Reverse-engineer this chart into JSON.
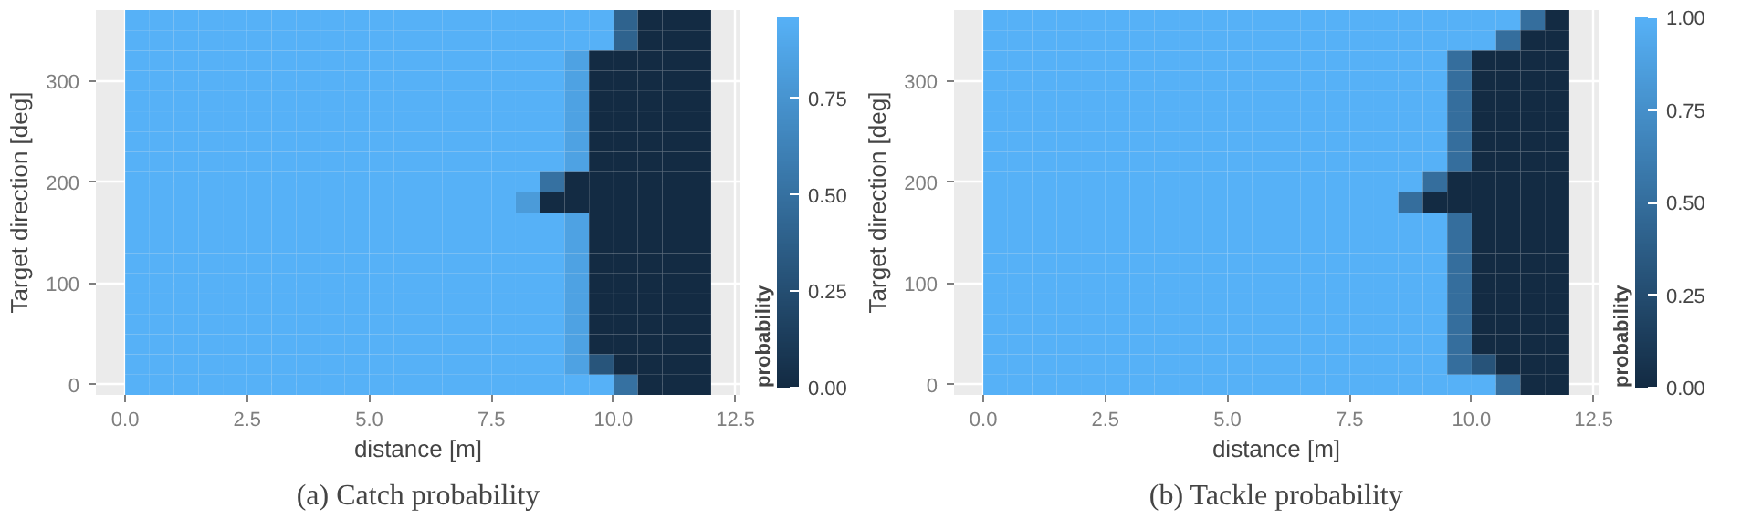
{
  "chart_data": [
    {
      "type": "heatmap",
      "xlabel": "distance [m]",
      "ylabel": "Target direction [deg]",
      "clabel": "probability",
      "annotations": [
        "(a) Catch probability"
      ],
      "x": [
        0.25,
        0.75,
        1.25,
        1.75,
        2.25,
        2.75,
        3.25,
        3.75,
        4.25,
        4.75,
        5.25,
        5.75,
        6.25,
        6.75,
        7.25,
        7.75,
        8.25,
        8.75,
        9.25,
        9.75,
        10.25,
        10.75,
        11.25,
        11.75
      ],
      "y_categories": [
        null,
        null,
        null,
        "300",
        null,
        null,
        null,
        null,
        "200",
        null,
        null,
        null,
        null,
        "100",
        null,
        null,
        null,
        null,
        "0"
      ],
      "cells": [
        [
          0.96,
          0.96,
          0.96,
          0.96,
          0.96,
          0.96,
          0.96,
          0.96,
          0.96,
          0.96,
          0.96,
          0.96,
          0.96,
          0.96,
          0.96,
          0.96,
          0.96,
          0.96,
          0.96,
          0.96,
          0.4,
          0,
          0,
          0
        ],
        [
          0.96,
          0.96,
          0.96,
          0.96,
          0.96,
          0.96,
          0.96,
          0.96,
          0.96,
          0.96,
          0.96,
          0.96,
          0.96,
          0.96,
          0.96,
          0.96,
          0.96,
          0.96,
          0.96,
          0.96,
          0.4,
          0,
          0,
          0
        ],
        [
          0.96,
          0.96,
          0.96,
          0.96,
          0.96,
          0.96,
          0.96,
          0.96,
          0.96,
          0.96,
          0.96,
          0.96,
          0.96,
          0.96,
          0.96,
          0.96,
          0.96,
          0.96,
          0.85,
          0,
          0,
          0,
          0,
          0
        ],
        [
          0.96,
          0.96,
          0.96,
          0.96,
          0.96,
          0.96,
          0.96,
          0.96,
          0.96,
          0.96,
          0.96,
          0.96,
          0.96,
          0.96,
          0.96,
          0.96,
          0.96,
          0.96,
          0.85,
          0,
          0,
          0,
          0,
          0
        ],
        [
          0.96,
          0.96,
          0.96,
          0.96,
          0.96,
          0.96,
          0.96,
          0.96,
          0.96,
          0.96,
          0.96,
          0.96,
          0.96,
          0.96,
          0.96,
          0.96,
          0.96,
          0.96,
          0.85,
          0,
          0,
          0,
          0,
          0
        ],
        [
          0.96,
          0.96,
          0.96,
          0.96,
          0.96,
          0.96,
          0.96,
          0.96,
          0.96,
          0.96,
          0.96,
          0.96,
          0.96,
          0.96,
          0.96,
          0.96,
          0.96,
          0.96,
          0.85,
          0,
          0,
          0,
          0,
          0
        ],
        [
          0.96,
          0.96,
          0.96,
          0.96,
          0.96,
          0.96,
          0.96,
          0.96,
          0.96,
          0.96,
          0.96,
          0.96,
          0.96,
          0.96,
          0.96,
          0.96,
          0.96,
          0.96,
          0.85,
          0,
          0,
          0,
          0,
          0
        ],
        [
          0.96,
          0.96,
          0.96,
          0.96,
          0.96,
          0.96,
          0.96,
          0.96,
          0.96,
          0.96,
          0.96,
          0.96,
          0.96,
          0.96,
          0.96,
          0.96,
          0.96,
          0.96,
          0.85,
          0,
          0,
          0,
          0,
          0
        ],
        [
          0.96,
          0.96,
          0.96,
          0.96,
          0.96,
          0.96,
          0.96,
          0.96,
          0.96,
          0.96,
          0.96,
          0.96,
          0.96,
          0.96,
          0.96,
          0.96,
          0.96,
          0.5,
          0,
          0,
          0,
          0,
          0,
          0
        ],
        [
          0.96,
          0.96,
          0.96,
          0.96,
          0.96,
          0.96,
          0.96,
          0.96,
          0.96,
          0.96,
          0.96,
          0.96,
          0.96,
          0.96,
          0.96,
          0.96,
          0.8,
          0,
          0,
          0,
          0,
          0,
          0,
          0
        ],
        [
          0.96,
          0.96,
          0.96,
          0.96,
          0.96,
          0.96,
          0.96,
          0.96,
          0.96,
          0.96,
          0.96,
          0.96,
          0.96,
          0.96,
          0.96,
          0.96,
          0.96,
          0.96,
          0.85,
          0,
          0,
          0,
          0,
          0
        ],
        [
          0.96,
          0.96,
          0.96,
          0.96,
          0.96,
          0.96,
          0.96,
          0.96,
          0.96,
          0.96,
          0.96,
          0.96,
          0.96,
          0.96,
          0.96,
          0.96,
          0.96,
          0.96,
          0.85,
          0,
          0,
          0,
          0,
          0
        ],
        [
          0.96,
          0.96,
          0.96,
          0.96,
          0.96,
          0.96,
          0.96,
          0.96,
          0.96,
          0.96,
          0.96,
          0.96,
          0.96,
          0.96,
          0.96,
          0.96,
          0.96,
          0.96,
          0.85,
          0,
          0,
          0,
          0,
          0
        ],
        [
          0.96,
          0.96,
          0.96,
          0.96,
          0.96,
          0.96,
          0.96,
          0.96,
          0.96,
          0.96,
          0.96,
          0.96,
          0.96,
          0.96,
          0.96,
          0.96,
          0.96,
          0.96,
          0.85,
          0,
          0,
          0,
          0,
          0
        ],
        [
          0.96,
          0.96,
          0.96,
          0.96,
          0.96,
          0.96,
          0.96,
          0.96,
          0.96,
          0.96,
          0.96,
          0.96,
          0.96,
          0.96,
          0.96,
          0.96,
          0.96,
          0.96,
          0.85,
          0,
          0,
          0,
          0,
          0
        ],
        [
          0.96,
          0.96,
          0.96,
          0.96,
          0.96,
          0.96,
          0.96,
          0.96,
          0.96,
          0.96,
          0.96,
          0.96,
          0.96,
          0.96,
          0.96,
          0.96,
          0.96,
          0.96,
          0.85,
          0,
          0,
          0,
          0,
          0
        ],
        [
          0.96,
          0.96,
          0.96,
          0.96,
          0.96,
          0.96,
          0.96,
          0.96,
          0.96,
          0.96,
          0.96,
          0.96,
          0.96,
          0.96,
          0.96,
          0.96,
          0.96,
          0.96,
          0.85,
          0,
          0,
          0,
          0,
          0
        ],
        [
          0.96,
          0.96,
          0.96,
          0.96,
          0.96,
          0.96,
          0.96,
          0.96,
          0.96,
          0.96,
          0.96,
          0.96,
          0.96,
          0.96,
          0.96,
          0.96,
          0.96,
          0.96,
          0.85,
          0.3,
          0,
          0,
          0,
          0
        ],
        [
          0.96,
          0.96,
          0.96,
          0.96,
          0.96,
          0.96,
          0.96,
          0.96,
          0.96,
          0.96,
          0.96,
          0.96,
          0.96,
          0.96,
          0.96,
          0.96,
          0.96,
          0.96,
          0.96,
          0.96,
          0.5,
          0,
          0,
          0
        ]
      ],
      "colors": [
        "#132b43",
        "#56b1f7"
      ],
      "clim": [
        0,
        0.96
      ],
      "cticks": [
        {
          "value": 0,
          "label": "0.00"
        },
        {
          "value": 0.25,
          "label": "0.25"
        },
        {
          "value": 0.5,
          "label": "0.50"
        },
        {
          "value": 0.75,
          "label": "0.75"
        }
      ],
      "xlim": [
        -0.6,
        12.6
      ],
      "xticks": [
        {
          "value": 0,
          "label": "0.0"
        },
        {
          "value": 2.5,
          "label": "2.5"
        },
        {
          "value": 5,
          "label": "5.0"
        },
        {
          "value": 7.5,
          "label": "7.5"
        },
        {
          "value": 10,
          "label": "10.0"
        },
        {
          "value": 12.5,
          "label": "12.5"
        }
      ],
      "grid": true
    },
    {
      "type": "heatmap",
      "xlabel": "distance [m]",
      "ylabel": "Target direction [deg]",
      "clabel": "probability",
      "annotations": [
        "(b) Tackle probability"
      ],
      "x": [
        0.25,
        0.75,
        1.25,
        1.75,
        2.25,
        2.75,
        3.25,
        3.75,
        4.25,
        4.75,
        5.25,
        5.75,
        6.25,
        6.75,
        7.25,
        7.75,
        8.25,
        8.75,
        9.25,
        9.75,
        10.25,
        10.75,
        11.25,
        11.75
      ],
      "y_categories": [
        null,
        null,
        null,
        "300",
        null,
        null,
        null,
        null,
        "200",
        null,
        null,
        null,
        null,
        "100",
        null,
        null,
        null,
        null,
        "0"
      ],
      "cells": [
        [
          1,
          1,
          1,
          1,
          1,
          1,
          1,
          1,
          1,
          1,
          1,
          1,
          1,
          1,
          1,
          1,
          1,
          1,
          1,
          1,
          1,
          1,
          0.5,
          0
        ],
        [
          1,
          1,
          1,
          1,
          1,
          1,
          1,
          1,
          1,
          1,
          1,
          1,
          1,
          1,
          1,
          1,
          1,
          1,
          1,
          1,
          1,
          0.5,
          0,
          0
        ],
        [
          1,
          1,
          1,
          1,
          1,
          1,
          1,
          1,
          1,
          1,
          1,
          1,
          1,
          1,
          1,
          1,
          1,
          1,
          1,
          0.5,
          0,
          0,
          0,
          0
        ],
        [
          1,
          1,
          1,
          1,
          1,
          1,
          1,
          1,
          1,
          1,
          1,
          1,
          1,
          1,
          1,
          1,
          1,
          1,
          1,
          0.5,
          0,
          0,
          0,
          0
        ],
        [
          1,
          1,
          1,
          1,
          1,
          1,
          1,
          1,
          1,
          1,
          1,
          1,
          1,
          1,
          1,
          1,
          1,
          1,
          1,
          0.5,
          0,
          0,
          0,
          0
        ],
        [
          1,
          1,
          1,
          1,
          1,
          1,
          1,
          1,
          1,
          1,
          1,
          1,
          1,
          1,
          1,
          1,
          1,
          1,
          1,
          0.5,
          0,
          0,
          0,
          0
        ],
        [
          1,
          1,
          1,
          1,
          1,
          1,
          1,
          1,
          1,
          1,
          1,
          1,
          1,
          1,
          1,
          1,
          1,
          1,
          1,
          0.5,
          0,
          0,
          0,
          0
        ],
        [
          1,
          1,
          1,
          1,
          1,
          1,
          1,
          1,
          1,
          1,
          1,
          1,
          1,
          1,
          1,
          1,
          1,
          1,
          1,
          0.5,
          0,
          0,
          0,
          0
        ],
        [
          1,
          1,
          1,
          1,
          1,
          1,
          1,
          1,
          1,
          1,
          1,
          1,
          1,
          1,
          1,
          1,
          1,
          1,
          0.5,
          0,
          0,
          0,
          0,
          0
        ],
        [
          1,
          1,
          1,
          1,
          1,
          1,
          1,
          1,
          1,
          1,
          1,
          1,
          1,
          1,
          1,
          1,
          1,
          0.5,
          0,
          0,
          0,
          0,
          0,
          0
        ],
        [
          1,
          1,
          1,
          1,
          1,
          1,
          1,
          1,
          1,
          1,
          1,
          1,
          1,
          1,
          1,
          1,
          1,
          1,
          1,
          0.5,
          0,
          0,
          0,
          0
        ],
        [
          1,
          1,
          1,
          1,
          1,
          1,
          1,
          1,
          1,
          1,
          1,
          1,
          1,
          1,
          1,
          1,
          1,
          1,
          1,
          0.5,
          0,
          0,
          0,
          0
        ],
        [
          1,
          1,
          1,
          1,
          1,
          1,
          1,
          1,
          1,
          1,
          1,
          1,
          1,
          1,
          1,
          1,
          1,
          1,
          1,
          0.5,
          0,
          0,
          0,
          0
        ],
        [
          1,
          1,
          1,
          1,
          1,
          1,
          1,
          1,
          1,
          1,
          1,
          1,
          1,
          1,
          1,
          1,
          1,
          1,
          1,
          0.5,
          0,
          0,
          0,
          0
        ],
        [
          1,
          1,
          1,
          1,
          1,
          1,
          1,
          1,
          1,
          1,
          1,
          1,
          1,
          1,
          1,
          1,
          1,
          1,
          1,
          0.5,
          0,
          0,
          0,
          0
        ],
        [
          1,
          1,
          1,
          1,
          1,
          1,
          1,
          1,
          1,
          1,
          1,
          1,
          1,
          1,
          1,
          1,
          1,
          1,
          1,
          0.5,
          0,
          0,
          0,
          0
        ],
        [
          1,
          1,
          1,
          1,
          1,
          1,
          1,
          1,
          1,
          1,
          1,
          1,
          1,
          1,
          1,
          1,
          1,
          1,
          1,
          0.5,
          0,
          0,
          0,
          0
        ],
        [
          1,
          1,
          1,
          1,
          1,
          1,
          1,
          1,
          1,
          1,
          1,
          1,
          1,
          1,
          1,
          1,
          1,
          1,
          1,
          0.5,
          0.3,
          0,
          0,
          0
        ],
        [
          1,
          1,
          1,
          1,
          1,
          1,
          1,
          1,
          1,
          1,
          1,
          1,
          1,
          1,
          1,
          1,
          1,
          1,
          1,
          1,
          1,
          0.5,
          0,
          0
        ]
      ],
      "colors": [
        "#132b43",
        "#56b1f7"
      ],
      "clim": [
        0,
        1
      ],
      "cticks": [
        {
          "value": 0,
          "label": "0.00"
        },
        {
          "value": 0.25,
          "label": "0.25"
        },
        {
          "value": 0.5,
          "label": "0.50"
        },
        {
          "value": 0.75,
          "label": "0.75"
        },
        {
          "value": 1,
          "label": "1.00"
        }
      ],
      "xlim": [
        -0.6,
        12.6
      ],
      "xticks": [
        {
          "value": 0,
          "label": "0.0"
        },
        {
          "value": 2.5,
          "label": "2.5"
        },
        {
          "value": 5,
          "label": "5.0"
        },
        {
          "value": 7.5,
          "label": "7.5"
        },
        {
          "value": 10,
          "label": "10.0"
        },
        {
          "value": 12.5,
          "label": "12.5"
        }
      ],
      "grid": true
    }
  ]
}
